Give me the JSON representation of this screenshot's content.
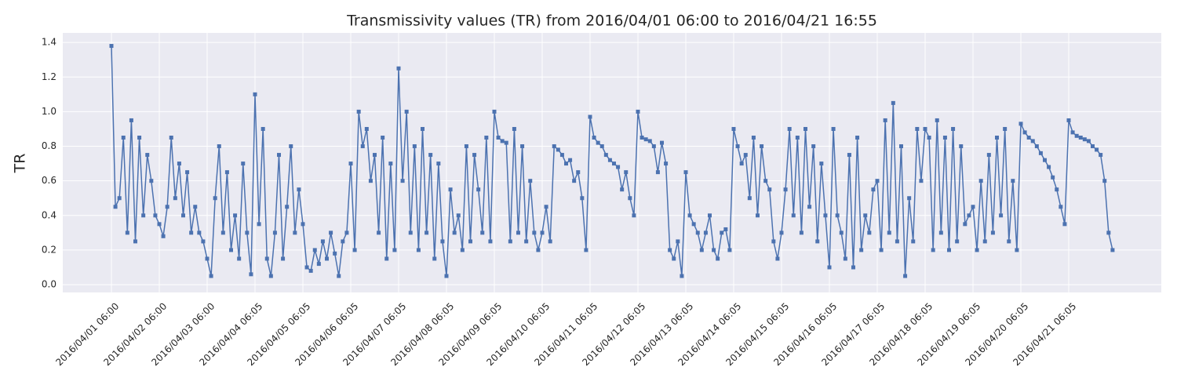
{
  "chart_data": {
    "type": "line",
    "title": "Transmissivity values (TR) from 2016/04/01 06:00 to 2016/04/21 16:55",
    "y_label": "TR",
    "color": "#4c72b0",
    "grid": true,
    "ylim": [
      -0.045,
      1.455
    ],
    "yticks": [
      {
        "value": 0,
        "label": "0.0"
      },
      0.2,
      0.4,
      0.6,
      0.8,
      {
        "value": 1,
        "label": "1.0"
      },
      1.2,
      1.4
    ],
    "xticks": [
      "2016/04/01 06:00",
      "2016/04/02 06:00",
      "2016/04/03 06:00",
      "2016/04/04 06:05",
      "2016/04/05 06:05",
      "2016/04/06 06:05",
      "2016/04/07 06:05",
      "2016/04/08 06:05",
      "2016/04/09 06:05",
      "2016/04/10 06:05",
      "2016/04/11 06:05",
      "2016/04/12 06:05",
      "2016/04/13 06:05",
      "2016/04/14 06:05",
      "2016/04/15 06:05",
      "2016/04/16 06:05",
      "2016/04/17 06:05",
      "2016/04/18 06:05",
      "2016/04/19 06:05",
      "2016/04/20 06:05",
      "2016/04/21 06:05"
    ],
    "categories": [
      "2016/04/01 06:00",
      "2016/04/01 07:00",
      "2016/04/01 08:00",
      "2016/04/01 09:00",
      "2016/04/01 10:00",
      "2016/04/01 11:00",
      "2016/04/01 12:00",
      "2016/04/01 13:00",
      "2016/04/01 14:00",
      "2016/04/01 15:00",
      "2016/04/01 16:00",
      "2016/04/01 17:00",
      "2016/04/02 06:00",
      "2016/04/02 07:00",
      "2016/04/02 08:00",
      "2016/04/02 09:00",
      "2016/04/02 10:00",
      "2016/04/02 11:00",
      "2016/04/02 12:00",
      "2016/04/02 13:00",
      "2016/04/02 14:00",
      "2016/04/02 15:00",
      "2016/04/02 16:00",
      "2016/04/02 17:00",
      "2016/04/03 06:00",
      "2016/04/03 07:00",
      "2016/04/03 08:00",
      "2016/04/03 09:00",
      "2016/04/03 10:00",
      "2016/04/03 11:00",
      "2016/04/03 12:00",
      "2016/04/03 13:00",
      "2016/04/03 14:00",
      "2016/04/03 15:00",
      "2016/04/03 16:00",
      "2016/04/03 17:00",
      "2016/04/04 06:05",
      "2016/04/04 07:05",
      "2016/04/04 08:05",
      "2016/04/04 09:05",
      "2016/04/04 10:05",
      "2016/04/04 11:05",
      "2016/04/04 12:05",
      "2016/04/04 13:05",
      "2016/04/04 14:05",
      "2016/04/04 15:05",
      "2016/04/04 16:05",
      "2016/04/04 17:05",
      "2016/04/05 06:05",
      "2016/04/05 07:05",
      "2016/04/05 08:05",
      "2016/04/05 09:05",
      "2016/04/05 10:05",
      "2016/04/05 11:05",
      "2016/04/05 12:05",
      "2016/04/05 13:05",
      "2016/04/05 14:05",
      "2016/04/05 15:05",
      "2016/04/05 16:05",
      "2016/04/05 17:05",
      "2016/04/06 06:05",
      "2016/04/06 07:05",
      "2016/04/06 08:05",
      "2016/04/06 09:05",
      "2016/04/06 10:05",
      "2016/04/06 11:05",
      "2016/04/06 12:05",
      "2016/04/06 13:05",
      "2016/04/06 14:05",
      "2016/04/06 15:05",
      "2016/04/06 16:05",
      "2016/04/06 17:05",
      "2016/04/07 06:05",
      "2016/04/07 07:05",
      "2016/04/07 08:05",
      "2016/04/07 09:05",
      "2016/04/07 10:05",
      "2016/04/07 11:05",
      "2016/04/07 12:05",
      "2016/04/07 13:05",
      "2016/04/07 14:05",
      "2016/04/07 15:05",
      "2016/04/07 16:05",
      "2016/04/07 17:05",
      "2016/04/08 06:05",
      "2016/04/08 07:05",
      "2016/04/08 08:05",
      "2016/04/08 09:05",
      "2016/04/08 10:05",
      "2016/04/08 11:05",
      "2016/04/08 12:05",
      "2016/04/08 13:05",
      "2016/04/08 14:05",
      "2016/04/08 15:05",
      "2016/04/08 16:05",
      "2016/04/08 17:05",
      "2016/04/09 06:05",
      "2016/04/09 07:05",
      "2016/04/09 08:05",
      "2016/04/09 09:05",
      "2016/04/09 10:05",
      "2016/04/09 11:05",
      "2016/04/09 12:05",
      "2016/04/09 13:05",
      "2016/04/09 14:05",
      "2016/04/09 15:05",
      "2016/04/09 16:05",
      "2016/04/09 17:05",
      "2016/04/10 06:05",
      "2016/04/10 07:05",
      "2016/04/10 08:05",
      "2016/04/10 09:05",
      "2016/04/10 10:05",
      "2016/04/10 11:05",
      "2016/04/10 12:05",
      "2016/04/10 13:05",
      "2016/04/10 14:05",
      "2016/04/10 15:05",
      "2016/04/10 16:05",
      "2016/04/10 17:05",
      "2016/04/11 06:05",
      "2016/04/11 07:05",
      "2016/04/11 08:05",
      "2016/04/11 09:05",
      "2016/04/11 10:05",
      "2016/04/11 11:05",
      "2016/04/11 12:05",
      "2016/04/11 13:05",
      "2016/04/11 14:05",
      "2016/04/11 15:05",
      "2016/04/11 16:05",
      "2016/04/11 17:05",
      "2016/04/12 06:05",
      "2016/04/12 07:05",
      "2016/04/12 08:05",
      "2016/04/12 09:05",
      "2016/04/12 10:05",
      "2016/04/12 11:05",
      "2016/04/12 12:05",
      "2016/04/12 13:05",
      "2016/04/12 14:05",
      "2016/04/12 15:05",
      "2016/04/12 16:05",
      "2016/04/12 17:05",
      "2016/04/13 06:05",
      "2016/04/13 07:05",
      "2016/04/13 08:05",
      "2016/04/13 09:05",
      "2016/04/13 10:05",
      "2016/04/13 11:05",
      "2016/04/13 12:05",
      "2016/04/13 13:05",
      "2016/04/13 14:05",
      "2016/04/13 15:05",
      "2016/04/13 16:05",
      "2016/04/13 17:05",
      "2016/04/14 06:05",
      "2016/04/14 07:05",
      "2016/04/14 08:05",
      "2016/04/14 09:05",
      "2016/04/14 10:05",
      "2016/04/14 11:05",
      "2016/04/14 12:05",
      "2016/04/14 13:05",
      "2016/04/14 14:05",
      "2016/04/14 15:05",
      "2016/04/14 16:05",
      "2016/04/14 17:05",
      "2016/04/15 06:05",
      "2016/04/15 07:05",
      "2016/04/15 08:05",
      "2016/04/15 09:05",
      "2016/04/15 10:05",
      "2016/04/15 11:05",
      "2016/04/15 12:05",
      "2016/04/15 13:05",
      "2016/04/15 14:05",
      "2016/04/15 15:05",
      "2016/04/15 16:05",
      "2016/04/15 17:05",
      "2016/04/16 06:05",
      "2016/04/16 07:05",
      "2016/04/16 08:05",
      "2016/04/16 09:05",
      "2016/04/16 10:05",
      "2016/04/16 11:05",
      "2016/04/16 12:05",
      "2016/04/16 13:05",
      "2016/04/16 14:05",
      "2016/04/16 15:05",
      "2016/04/16 16:05",
      "2016/04/16 17:05",
      "2016/04/17 06:05",
      "2016/04/17 07:05",
      "2016/04/17 08:05",
      "2016/04/17 09:05",
      "2016/04/17 10:05",
      "2016/04/17 11:05",
      "2016/04/17 12:05",
      "2016/04/17 13:05",
      "2016/04/17 14:05",
      "2016/04/17 15:05",
      "2016/04/17 16:05",
      "2016/04/17 17:05",
      "2016/04/18 06:05",
      "2016/04/18 07:05",
      "2016/04/18 08:05",
      "2016/04/18 09:05",
      "2016/04/18 10:05",
      "2016/04/18 11:05",
      "2016/04/18 12:05",
      "2016/04/18 13:05",
      "2016/04/18 14:05",
      "2016/04/18 15:05",
      "2016/04/18 16:05",
      "2016/04/18 17:05",
      "2016/04/19 06:05",
      "2016/04/19 07:05",
      "2016/04/19 08:05",
      "2016/04/19 09:05",
      "2016/04/19 10:05",
      "2016/04/19 11:05",
      "2016/04/19 12:05",
      "2016/04/19 13:05",
      "2016/04/19 14:05",
      "2016/04/19 15:05",
      "2016/04/19 16:05",
      "2016/04/19 17:05",
      "2016/04/20 06:05",
      "2016/04/20 07:05",
      "2016/04/20 08:05",
      "2016/04/20 09:05",
      "2016/04/20 10:05",
      "2016/04/20 11:05",
      "2016/04/20 12:05",
      "2016/04/20 13:05",
      "2016/04/20 14:05",
      "2016/04/20 15:05",
      "2016/04/20 16:05",
      "2016/04/20 17:05",
      "2016/04/21 06:05",
      "2016/04/21 07:05",
      "2016/04/21 08:05",
      "2016/04/21 09:05",
      "2016/04/21 10:05",
      "2016/04/21 11:05",
      "2016/04/21 12:05",
      "2016/04/21 13:05",
      "2016/04/21 14:05",
      "2016/04/21 15:05",
      "2016/04/21 16:05",
      "2016/04/21 16:55"
    ],
    "values": [
      1.38,
      0.45,
      0.5,
      0.85,
      0.3,
      0.95,
      0.25,
      0.85,
      0.4,
      0.75,
      0.6,
      0.4,
      0.35,
      0.28,
      0.45,
      0.85,
      0.5,
      0.7,
      0.4,
      0.65,
      0.3,
      0.45,
      0.3,
      0.25,
      0.15,
      0.05,
      0.5,
      0.8,
      0.3,
      0.65,
      0.2,
      0.4,
      0.15,
      0.7,
      0.3,
      0.06,
      1.1,
      0.35,
      0.9,
      0.15,
      0.05,
      0.3,
      0.75,
      0.15,
      0.45,
      0.8,
      0.3,
      0.55,
      0.35,
      0.1,
      0.08,
      0.2,
      0.12,
      0.25,
      0.15,
      0.3,
      0.18,
      0.05,
      0.25,
      0.3,
      0.7,
      0.2,
      1.0,
      0.8,
      0.9,
      0.6,
      0.75,
      0.3,
      0.85,
      0.15,
      0.7,
      0.2,
      1.25,
      0.6,
      1.0,
      0.3,
      0.8,
      0.2,
      0.9,
      0.3,
      0.75,
      0.15,
      0.7,
      0.25,
      0.05,
      0.55,
      0.3,
      0.4,
      0.2,
      0.8,
      0.25,
      0.75,
      0.55,
      0.3,
      0.85,
      0.25,
      1.0,
      0.85,
      0.83,
      0.82,
      0.25,
      0.9,
      0.3,
      0.8,
      0.25,
      0.6,
      0.3,
      0.2,
      0.3,
      0.45,
      0.25,
      0.8,
      0.78,
      0.75,
      0.7,
      0.72,
      0.6,
      0.65,
      0.5,
      0.2,
      0.97,
      0.85,
      0.82,
      0.8,
      0.75,
      0.72,
      0.7,
      0.68,
      0.55,
      0.65,
      0.5,
      0.4,
      1.0,
      0.85,
      0.84,
      0.83,
      0.8,
      0.65,
      0.82,
      0.7,
      0.2,
      0.15,
      0.25,
      0.05,
      0.65,
      0.4,
      0.35,
      0.3,
      0.2,
      0.3,
      0.4,
      0.2,
      0.15,
      0.3,
      0.32,
      0.2,
      0.9,
      0.8,
      0.7,
      0.75,
      0.5,
      0.85,
      0.4,
      0.8,
      0.6,
      0.55,
      0.25,
      0.15,
      0.3,
      0.55,
      0.9,
      0.4,
      0.85,
      0.3,
      0.9,
      0.45,
      0.8,
      0.25,
      0.7,
      0.4,
      0.1,
      0.9,
      0.4,
      0.3,
      0.15,
      0.75,
      0.1,
      0.85,
      0.2,
      0.4,
      0.3,
      0.55,
      0.6,
      0.2,
      0.95,
      0.3,
      1.05,
      0.25,
      0.8,
      0.05,
      0.5,
      0.25,
      0.9,
      0.6,
      0.9,
      0.85,
      0.2,
      0.95,
      0.3,
      0.85,
      0.2,
      0.9,
      0.25,
      0.8,
      0.35,
      0.4,
      0.45,
      0.2,
      0.6,
      0.25,
      0.75,
      0.3,
      0.85,
      0.4,
      0.9,
      0.25,
      0.6,
      0.2,
      0.93,
      0.88,
      0.85,
      0.83,
      0.8,
      0.76,
      0.72,
      0.68,
      0.62,
      0.55,
      0.45,
      0.35,
      0.95,
      0.88,
      0.86,
      0.85,
      0.84,
      0.83,
      0.8,
      0.78,
      0.75,
      0.6,
      0.3,
      0.2
    ]
  }
}
